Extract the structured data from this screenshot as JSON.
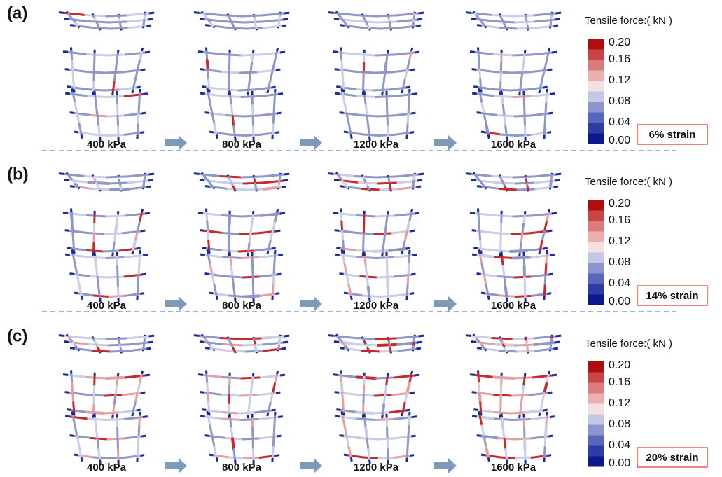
{
  "panels": [
    {
      "label": "(a)",
      "pressures": [
        "400 kPa",
        "800 kPa",
        "1200 kPa",
        "1600 kPa"
      ],
      "strain": "6% strain"
    },
    {
      "label": "(b)",
      "pressures": [
        "400 kPa",
        "800 kPa",
        "1200 kPa",
        "1600 kPa"
      ],
      "strain": "14% strain"
    },
    {
      "label": "(c)",
      "pressures": [
        "400 kPa",
        "800 kPa",
        "1200 kPa",
        "1600 kPa"
      ],
      "strain": "20% strain"
    }
  ],
  "colorbar": {
    "title": "Tensile force:( kN )",
    "ticks": [
      {
        "value": 0.2,
        "label": "0.20"
      },
      {
        "value": 0.16,
        "label": "0.16"
      },
      {
        "value": 0.12,
        "label": "0.12"
      },
      {
        "value": 0.08,
        "label": "0.08"
      },
      {
        "value": 0.04,
        "label": "0.04"
      },
      {
        "value": 0,
        "label": "0.00"
      }
    ],
    "range": [
      0,
      0.2
    ],
    "colors": [
      "#0a1a8c",
      "#2c3ea6",
      "#5866bc",
      "#8d95cf",
      "#c4c8e6",
      "#f3e0e0",
      "#eab0b0",
      "#db7b7b",
      "#c94545",
      "#b00e0e"
    ]
  }
}
